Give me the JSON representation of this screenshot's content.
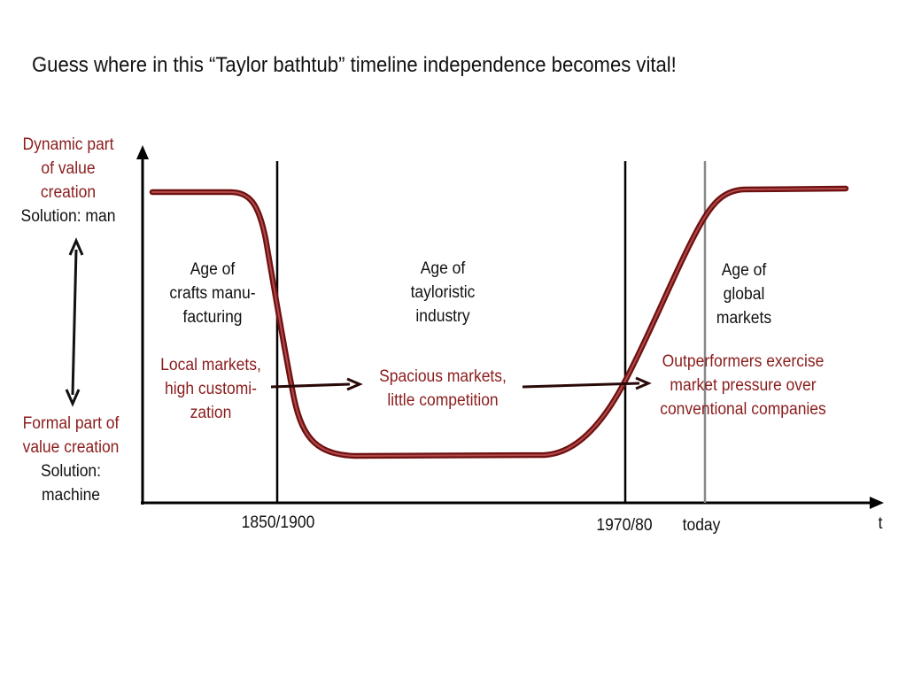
{
  "title": "Guess where in this “Taylor bathtub” timeline independence becomes vital!",
  "y_axis": {
    "top_label_lines": [
      "Dynamic part",
      "of value",
      "creation"
    ],
    "top_solution": "Solution: man",
    "bottom_label_lines": [
      "Formal part of",
      "value creation"
    ],
    "bottom_solution_lines": [
      "Solution:",
      "machine"
    ]
  },
  "x_axis": {
    "label": "t",
    "ticks": [
      "1850/1900",
      "1970/80",
      "today"
    ]
  },
  "eras": [
    {
      "lines": [
        "Age of",
        "crafts manu-",
        "facturing"
      ]
    },
    {
      "lines": [
        "Age of",
        "tayloristic",
        "industry"
      ]
    },
    {
      "lines": [
        "Age of",
        "global",
        "markets"
      ]
    }
  ],
  "market_notes": [
    {
      "lines": [
        "Local markets,",
        "high customi-",
        "zation"
      ]
    },
    {
      "lines": [
        "Spacious markets,",
        "little competition"
      ]
    },
    {
      "lines": [
        "Outperformers exercise",
        "market pressure over",
        "conventional companies"
      ]
    }
  ],
  "colors": {
    "curve": "#7a1414",
    "curve_core": "#a23a3a",
    "note_text": "#8b1c1c",
    "axis": "#000000",
    "today_line": "#888888"
  },
  "icons": [
    "double-headed-vertical-arrow-icon",
    "right-arrow-icon"
  ]
}
